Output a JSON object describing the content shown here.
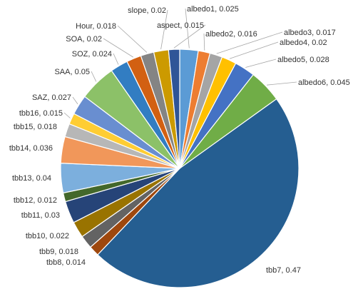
{
  "chart_data": {
    "type": "pie",
    "title": "",
    "slices": [
      {
        "label": "albedo1",
        "value": 0.025,
        "text": "albedo1, 0.025",
        "color": "#5B9BD5"
      },
      {
        "label": "albedo2",
        "value": 0.016,
        "text": "albedo2, 0.016",
        "color": "#ED7D31"
      },
      {
        "label": "albedo3",
        "value": 0.017,
        "text": "albedo3, 0.017",
        "color": "#A5A5A5"
      },
      {
        "label": "albedo4",
        "value": 0.02,
        "text": "albedo4, 0.02",
        "color": "#FFC000"
      },
      {
        "label": "albedo5",
        "value": 0.028,
        "text": "albedo5, 0.028",
        "color": "#4472C4"
      },
      {
        "label": "albedo6",
        "value": 0.045,
        "text": "albedo6, 0.045",
        "color": "#70AD47"
      },
      {
        "label": "tbb7",
        "value": 0.47,
        "text": "tbb7, 0.47",
        "color": "#255E91"
      },
      {
        "label": "tbb8",
        "value": 0.014,
        "text": "tbb8, 0.014",
        "color": "#9E480E"
      },
      {
        "label": "tbb9",
        "value": 0.018,
        "text": "tbb9, 0.018",
        "color": "#636363"
      },
      {
        "label": "tbb10",
        "value": 0.022,
        "text": "tbb10, 0.022",
        "color": "#997300"
      },
      {
        "label": "tbb11",
        "value": 0.03,
        "text": "tbb11, 0.03",
        "color": "#264478"
      },
      {
        "label": "tbb12",
        "value": 0.012,
        "text": "tbb12, 0.012",
        "color": "#43682B"
      },
      {
        "label": "tbb13",
        "value": 0.04,
        "text": "tbb13, 0.04",
        "color": "#7CAFDD"
      },
      {
        "label": "tbb14",
        "value": 0.036,
        "text": "tbb14, 0.036",
        "color": "#F1975A"
      },
      {
        "label": "tbb15",
        "value": 0.018,
        "text": "tbb15, 0.018",
        "color": "#B7B7B7"
      },
      {
        "label": "tbb16",
        "value": 0.015,
        "text": "tbb16, 0.015",
        "color": "#FFCD33"
      },
      {
        "label": "SAZ",
        "value": 0.027,
        "text": "SAZ, 0.027",
        "color": "#698ED0"
      },
      {
        "label": "SAA",
        "value": 0.05,
        "text": "SAA, 0.05",
        "color": "#8CC168"
      },
      {
        "label": "SOZ",
        "value": 0.024,
        "text": "SOZ, 0.024",
        "color": "#327DC2"
      },
      {
        "label": "SOA",
        "value": 0.02,
        "text": "SOA, 0.02",
        "color": "#D26012"
      },
      {
        "label": "Hour",
        "value": 0.018,
        "text": "Hour, 0.018",
        "color": "#848484"
      },
      {
        "label": "slope",
        "value": 0.02,
        "text": "slope, 0.02",
        "color": "#CC9A00"
      },
      {
        "label": "aspect",
        "value": 0.015,
        "text": "aspect, 0.015",
        "color": "#2F5597"
      }
    ]
  }
}
